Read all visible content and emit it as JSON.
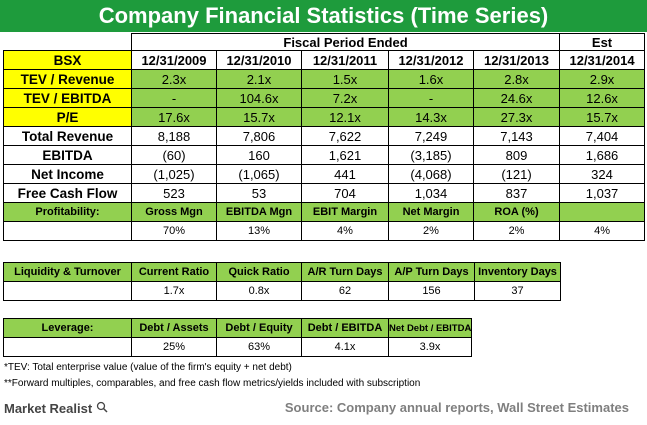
{
  "title": "Company Financial Statistics (Time Series)",
  "header": {
    "fiscal_label": "Fiscal Period Ended",
    "est_label": "Est",
    "ticker": "BSX",
    "periods": [
      "12/31/2009",
      "12/31/2010",
      "12/31/2011",
      "12/31/2012",
      "12/31/2013",
      "12/31/2014"
    ]
  },
  "multiples": [
    {
      "label": "TEV / Revenue",
      "values": [
        "2.3x",
        "2.1x",
        "1.5x",
        "1.6x",
        "2.8x",
        "2.9x"
      ]
    },
    {
      "label": "TEV / EBITDA",
      "values": [
        "-",
        "104.6x",
        "7.2x",
        "-",
        "24.6x",
        "12.6x"
      ]
    },
    {
      "label": "P/E",
      "values": [
        "17.6x",
        "15.7x",
        "12.1x",
        "14.3x",
        "27.3x",
        "15.7x"
      ]
    }
  ],
  "financials": [
    {
      "label": "Total Revenue",
      "values": [
        "8,188",
        "7,806",
        "7,622",
        "7,249",
        "7,143",
        "7,404"
      ]
    },
    {
      "label": "EBITDA",
      "values": [
        "(60)",
        "160",
        "1,621",
        "(3,185)",
        "809",
        "1,686"
      ]
    },
    {
      "label": "Net Income",
      "values": [
        "(1,025)",
        "(1,065)",
        "441",
        "(4,068)",
        "(121)",
        "324"
      ]
    },
    {
      "label": "Free Cash Flow",
      "values": [
        "523",
        "53",
        "704",
        "1,034",
        "837",
        "1,037"
      ]
    }
  ],
  "profitability": {
    "label": "Profitability:",
    "headers": [
      "Gross Mgn",
      "EBITDA Mgn",
      "EBIT Margin",
      "Net Margin",
      "ROA (%)",
      ""
    ],
    "values": [
      "70%",
      "13%",
      "4%",
      "2%",
      "2%",
      "4%"
    ]
  },
  "liquidity": {
    "label": "Liquidity & Turnover",
    "headers": [
      "Current Ratio",
      "Quick Ratio",
      "A/R Turn Days",
      "A/P Turn Days",
      "Inventory Days"
    ],
    "values": [
      "1.7x",
      "0.8x",
      "62",
      "156",
      "37"
    ]
  },
  "leverage": {
    "label": "Leverage:",
    "headers": [
      "Debt / Assets",
      "Debt / Equity",
      "Debt / EBITDA",
      "Net Debt / EBITDA"
    ],
    "values": [
      "25%",
      "63%",
      "4.1x",
      "3.9x"
    ]
  },
  "footnotes": [
    "*TEV: Total enterprise value (value of the firm's equity + net debt)",
    "**Forward multiples, comparables, and free cash flow metrics/yields included with subscription"
  ],
  "logo_text": "Market Realist",
  "source": "Source: Company annual reports, Wall Street Estimates",
  "colors": {
    "title_bg": "#1e9b3c",
    "header_yellow": "#ffff00",
    "multiples_green": "#92d050"
  }
}
